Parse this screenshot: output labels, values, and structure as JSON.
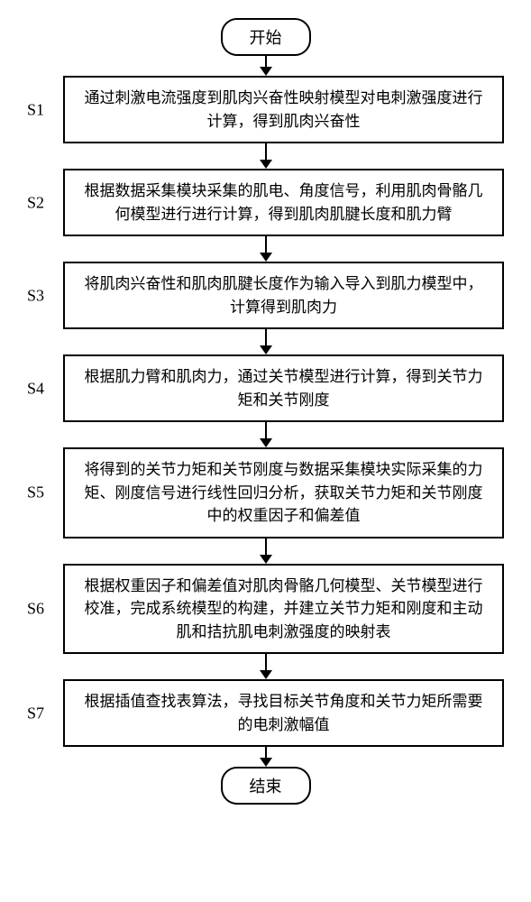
{
  "flowchart": {
    "type": "flowchart",
    "background_color": "#ffffff",
    "border_color": "#000000",
    "border_width": 2,
    "font_family": "SimSun",
    "terminal_fontsize": 18,
    "process_fontsize": 17,
    "label_fontsize": 18,
    "terminal_border_radius": 18,
    "arrow_color": "#000000",
    "start": "开始",
    "end": "结束",
    "steps": [
      {
        "label": "S1",
        "text": "通过刺激电流强度到肌肉兴奋性映射模型对电刺激强度进行计算，得到肌肉兴奋性"
      },
      {
        "label": "S2",
        "text": "根据数据采集模块采集的肌电、角度信号，利用肌肉骨骼几何模型进行进行计算，得到肌肉肌腱长度和肌力臂"
      },
      {
        "label": "S3",
        "text": "将肌肉兴奋性和肌肉肌腱长度作为输入导入到肌力模型中，计算得到肌肉力"
      },
      {
        "label": "S4",
        "text": "根据肌力臂和肌肉力，通过关节模型进行计算，得到关节力矩和关节刚度"
      },
      {
        "label": "S5",
        "text": "将得到的关节力矩和关节刚度与数据采集模块实际采集的力矩、刚度信号进行线性回归分析，获取关节力矩和关节刚度中的权重因子和偏差值"
      },
      {
        "label": "S6",
        "text": "根据权重因子和偏差值对肌肉骨骼几何模型、关节模型进行校准，完成系统模型的构建，并建立关节力矩和刚度和主动肌和拮抗肌电刺激强度的映射表"
      },
      {
        "label": "S7",
        "text": "根据插值查找表算法，寻找目标关节角度和关节力矩所需要的电刺激幅值"
      }
    ]
  }
}
